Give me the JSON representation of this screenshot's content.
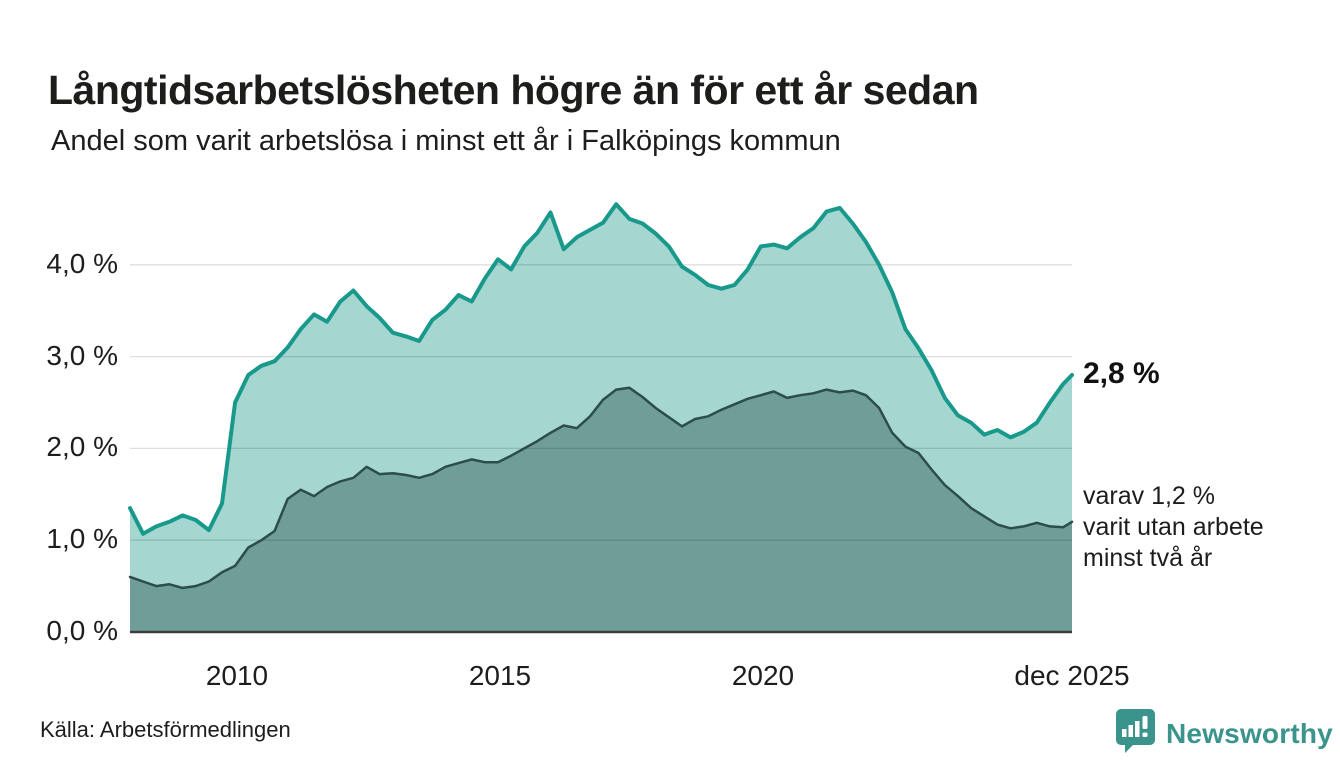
{
  "header": {
    "title": "Långtidsarbetslösheten högre än för ett år sedan",
    "subtitle": "Andel som varit arbetslösa i minst ett år i Falköpings kommun"
  },
  "chart_data": {
    "type": "area",
    "title": "Långtidsarbetslösheten högre än för ett år sedan",
    "subtitle": "Andel som varit arbetslösa i minst ett år i Falköpings kommun",
    "xlabel": "",
    "ylabel": "",
    "unit": "%",
    "grid": "horizontal",
    "legend": "none",
    "x_range": [
      2008,
      2025.92
    ],
    "y_range": [
      0,
      4.8
    ],
    "y_ticks": [
      {
        "value": 0,
        "label": "0,0 %"
      },
      {
        "value": 1,
        "label": "1,0 %"
      },
      {
        "value": 2,
        "label": "2,0 %"
      },
      {
        "value": 3,
        "label": "3,0 %"
      },
      {
        "value": 4,
        "label": "4,0 %"
      }
    ],
    "x_ticks": [
      {
        "value": 2010,
        "label": "2010"
      },
      {
        "value": 2015,
        "label": "2015"
      },
      {
        "value": 2020,
        "label": "2020"
      },
      {
        "value": 2025.92,
        "label": "dec 2025"
      }
    ],
    "series": [
      {
        "name": "Andel arbetslösa minst ett år",
        "end_value_pct": 2.8,
        "color": "#18998b",
        "fill": "#a5d6cf",
        "width": 4,
        "x": [
          2008,
          2008.25,
          2008.5,
          2008.75,
          2009,
          2009.25,
          2009.5,
          2009.75,
          2010,
          2010.25,
          2010.5,
          2010.75,
          2011,
          2011.25,
          2011.5,
          2011.75,
          2012,
          2012.25,
          2012.5,
          2012.75,
          2013,
          2013.25,
          2013.5,
          2013.75,
          2014,
          2014.25,
          2014.5,
          2014.75,
          2015,
          2015.25,
          2015.5,
          2015.75,
          2016,
          2016.25,
          2016.5,
          2016.75,
          2017,
          2017.25,
          2017.5,
          2017.75,
          2018,
          2018.25,
          2018.5,
          2018.75,
          2019,
          2019.25,
          2019.5,
          2019.75,
          2020,
          2020.25,
          2020.5,
          2020.75,
          2021,
          2021.25,
          2021.5,
          2021.75,
          2022,
          2022.25,
          2022.5,
          2022.75,
          2023,
          2023.25,
          2023.5,
          2023.75,
          2024,
          2024.25,
          2024.5,
          2024.75,
          2025,
          2025.25,
          2025.5,
          2025.75,
          2025.92
        ],
        "values": [
          1.35,
          1.07,
          1.15,
          1.2,
          1.27,
          1.22,
          1.11,
          1.4,
          2.5,
          2.8,
          2.9,
          2.95,
          3.1,
          3.3,
          3.46,
          3.38,
          3.6,
          3.72,
          3.55,
          3.42,
          3.26,
          3.22,
          3.17,
          3.4,
          3.51,
          3.67,
          3.6,
          3.85,
          4.06,
          3.95,
          4.2,
          4.35,
          4.57,
          4.17,
          4.3,
          4.38,
          4.46,
          4.66,
          4.5,
          4.45,
          4.34,
          4.2,
          3.98,
          3.89,
          3.78,
          3.74,
          3.78,
          3.95,
          4.2,
          4.22,
          4.18,
          4.3,
          4.4,
          4.58,
          4.62,
          4.45,
          4.25,
          4.0,
          3.7,
          3.3,
          3.09,
          2.85,
          2.55,
          2.36,
          2.28,
          2.15,
          2.2,
          2.12,
          2.18,
          2.28,
          2.5,
          2.7,
          2.8
        ]
      },
      {
        "name": "varav arbetslösa minst två år",
        "end_value_pct": 1.2,
        "color": "#2d4d49",
        "fill": "#6f9e99",
        "width": 2.5,
        "x": [
          2008,
          2008.25,
          2008.5,
          2008.75,
          2009,
          2009.25,
          2009.5,
          2009.75,
          2010,
          2010.25,
          2010.5,
          2010.75,
          2011,
          2011.25,
          2011.5,
          2011.75,
          2012,
          2012.25,
          2012.5,
          2012.75,
          2013,
          2013.25,
          2013.5,
          2013.75,
          2014,
          2014.25,
          2014.5,
          2014.75,
          2015,
          2015.25,
          2015.5,
          2015.75,
          2016,
          2016.25,
          2016.5,
          2016.75,
          2017,
          2017.25,
          2017.5,
          2017.75,
          2018,
          2018.25,
          2018.5,
          2018.75,
          2019,
          2019.25,
          2019.5,
          2019.75,
          2020,
          2020.25,
          2020.5,
          2020.75,
          2021,
          2021.25,
          2021.5,
          2021.75,
          2022,
          2022.25,
          2022.5,
          2022.75,
          2023,
          2023.25,
          2023.5,
          2023.75,
          2024,
          2024.25,
          2024.5,
          2024.75,
          2025,
          2025.25,
          2025.5,
          2025.75,
          2025.92
        ],
        "values": [
          0.6,
          0.55,
          0.5,
          0.52,
          0.48,
          0.5,
          0.55,
          0.65,
          0.72,
          0.92,
          1.0,
          1.1,
          1.45,
          1.55,
          1.48,
          1.58,
          1.64,
          1.68,
          1.8,
          1.72,
          1.73,
          1.71,
          1.68,
          1.72,
          1.8,
          1.84,
          1.88,
          1.85,
          1.85,
          1.92,
          2.0,
          2.08,
          2.17,
          2.25,
          2.22,
          2.35,
          2.53,
          2.64,
          2.66,
          2.56,
          2.44,
          2.34,
          2.24,
          2.32,
          2.35,
          2.42,
          2.48,
          2.54,
          2.58,
          2.62,
          2.55,
          2.58,
          2.6,
          2.64,
          2.61,
          2.63,
          2.58,
          2.44,
          2.17,
          2.02,
          1.95,
          1.77,
          1.6,
          1.48,
          1.35,
          1.26,
          1.17,
          1.13,
          1.15,
          1.19,
          1.15,
          1.14,
          1.2
        ]
      }
    ],
    "gridline_color": "rgba(0,0,0,0.13)",
    "baseline_color": "#3c3c3a"
  },
  "annotations": {
    "latest_value": "2,8 %",
    "secondary_line1": "varav 1,2 %",
    "secondary_line2": "varit utan arbete",
    "secondary_line3": "minst två år"
  },
  "footer": {
    "source": "Källa: Arbetsförmedlingen",
    "brand_name": "Newsworthy",
    "brand_color": "#3b948c"
  }
}
